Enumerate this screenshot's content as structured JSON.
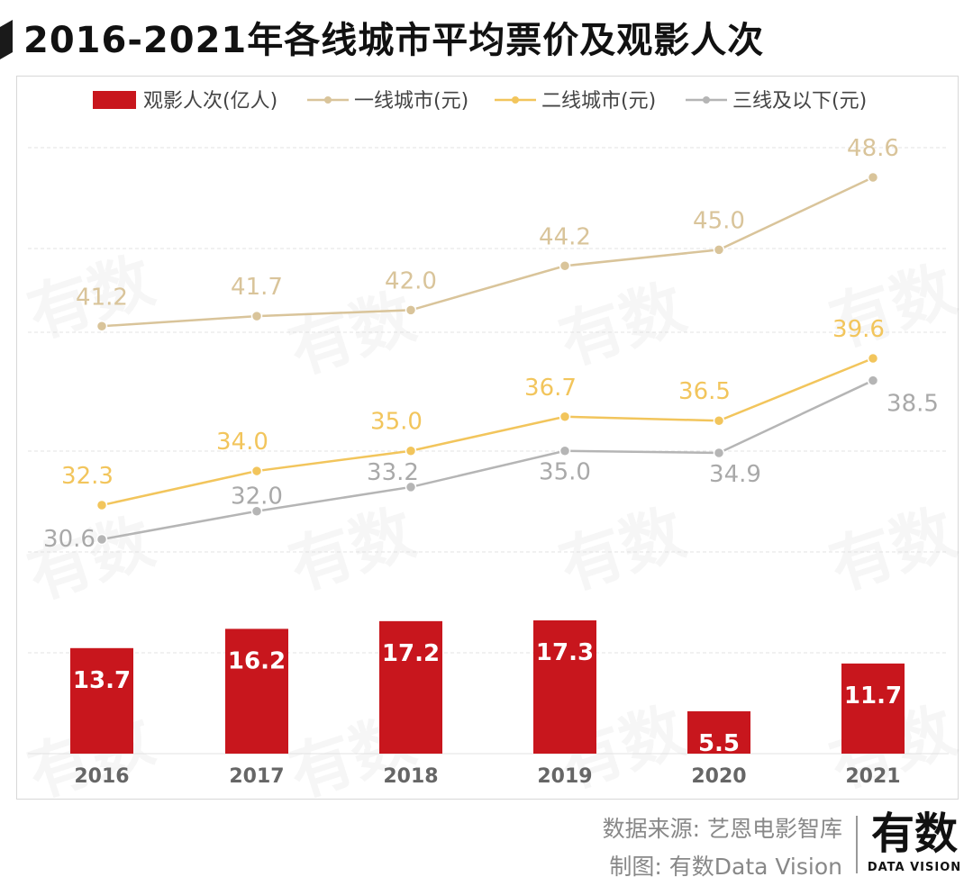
{
  "title": "2016-2021年各线城市平均票价及观影人次",
  "colors": {
    "bar": "#c8161d",
    "tier1": "#d9c49a",
    "tier2": "#f2c55c",
    "tier3": "#b5b5b5",
    "grid": "#e3e3e3"
  },
  "chart_data": {
    "type": "bar+line",
    "categories": [
      "2016",
      "2017",
      "2018",
      "2019",
      "2020",
      "2021"
    ],
    "bars": {
      "name": "观影人次(亿人)",
      "values": [
        13.7,
        16.2,
        17.2,
        17.3,
        5.5,
        11.7
      ],
      "labels": [
        "13.7",
        "16.2",
        "17.2",
        "17.3",
        "5.5",
        "11.7"
      ]
    },
    "series": [
      {
        "name": "一线城市(元)",
        "key": "tier1",
        "values": [
          41.2,
          41.7,
          42.0,
          44.2,
          45.0,
          48.6
        ],
        "labels": [
          "41.2",
          "41.7",
          "42.0",
          "44.2",
          "45.0",
          "48.6"
        ]
      },
      {
        "name": "二线城市(元)",
        "key": "tier2",
        "values": [
          32.3,
          34.0,
          35.0,
          36.7,
          36.5,
          39.6
        ],
        "labels": [
          "32.3",
          "34.0",
          "35.0",
          "36.7",
          "36.5",
          "39.6"
        ]
      },
      {
        "name": "三线及以下(元)",
        "key": "tier3",
        "values": [
          30.6,
          32.0,
          33.2,
          35.0,
          34.9,
          38.5
        ],
        "labels": [
          "30.6",
          "32.0",
          "33.2",
          "35.0",
          "34.9",
          "38.5"
        ]
      }
    ],
    "legend_position": "top",
    "grid": true
  },
  "watermark": "有数",
  "footer": {
    "source": "数据来源: 艺恩电影智库",
    "made_by": "制图: 有数Data Vision"
  },
  "logo": {
    "main": "有数",
    "sub": "DATA VISION"
  }
}
